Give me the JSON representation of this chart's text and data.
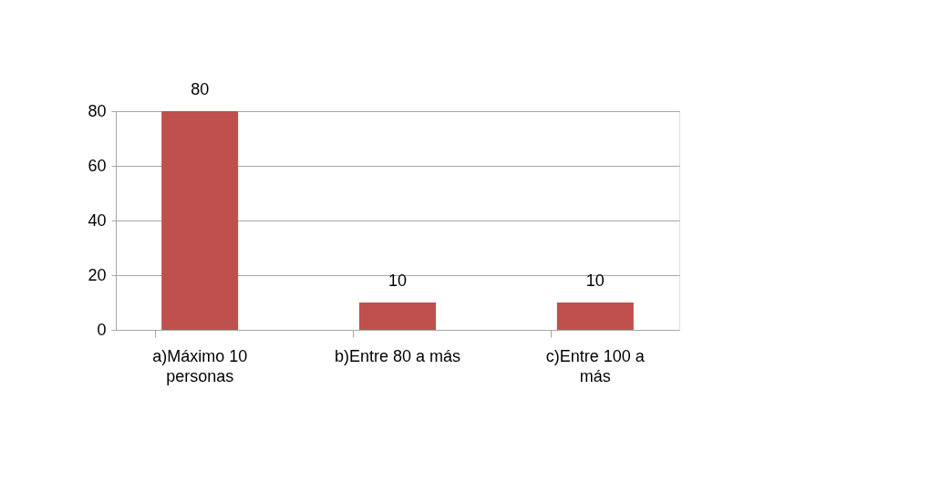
{
  "chart_data": {
    "type": "bar",
    "categories": [
      "a)Máximo 10 personas",
      "b)Entre 80 a más",
      "c)Entre 100 a más"
    ],
    "values": [
      80,
      10,
      10
    ],
    "color": "#c0504d",
    "ylim": [
      0,
      80
    ],
    "yticks": [
      0,
      20,
      40,
      60,
      80
    ],
    "grid": "y",
    "data_labels": true
  }
}
